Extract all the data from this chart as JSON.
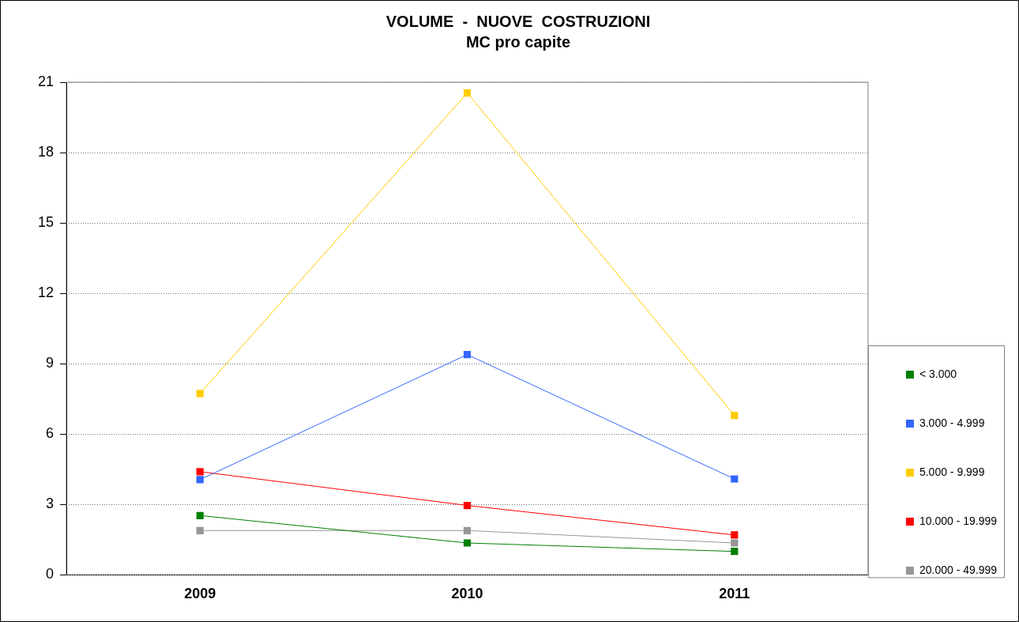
{
  "chart_data": {
    "type": "line",
    "title": "VOLUME  -  NUOVE  COSTRUZIONI",
    "subtitle": "MC pro capite",
    "categories": [
      "2009",
      "2010",
      "2011"
    ],
    "series": [
      {
        "name": "< 3.000",
        "color": "#008000",
        "values": [
          2.53,
          1.36,
          1.0
        ]
      },
      {
        "name": "3.000 - 4.999",
        "color": "#3366ff",
        "values": [
          4.06,
          9.39,
          4.09
        ]
      },
      {
        "name": "5.000 - 9.999",
        "color": "#ffcc00",
        "values": [
          7.73,
          20.54,
          6.8
        ]
      },
      {
        "name": "10.000 - 19.999",
        "color": "#ff0000",
        "values": [
          4.4,
          2.96,
          1.7
        ]
      },
      {
        "name": "20.000 - 49.999",
        "color": "#969696",
        "values": [
          1.89,
          1.89,
          1.36
        ]
      }
    ],
    "ylim": [
      0,
      21
    ],
    "yticks": [
      0,
      3,
      6,
      9,
      12,
      15,
      18,
      21
    ],
    "grid": "y",
    "legend": "bottom right",
    "marker": "square",
    "line_style": "solid"
  }
}
